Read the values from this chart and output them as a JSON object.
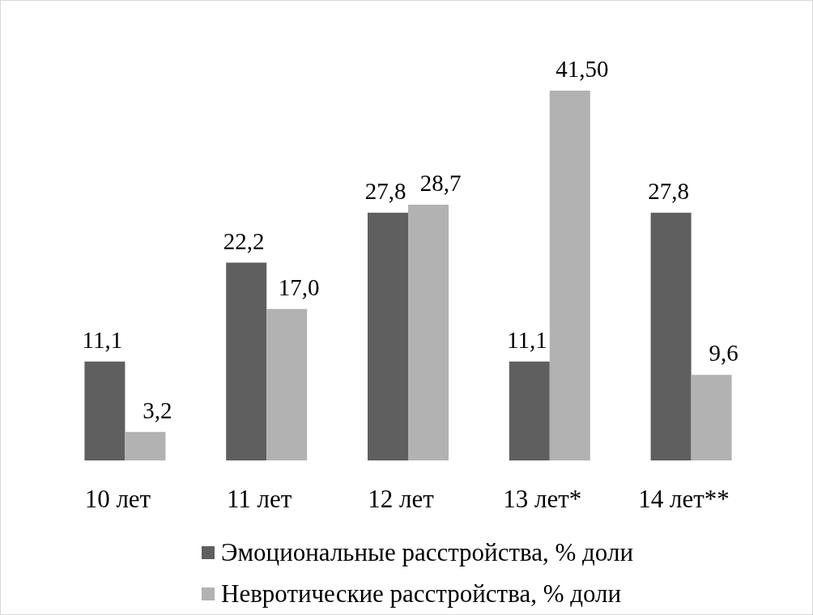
{
  "chart_data": {
    "type": "bar",
    "categories": [
      "10 лет",
      "11 лет",
      "12 лет",
      "13 лет*",
      "14 лет**"
    ],
    "series": [
      {
        "name": "Эмоциональные расстройства, % доли",
        "color": "#5f5f5f",
        "values": [
          11.1,
          22.2,
          27.8,
          11.1,
          27.8
        ],
        "value_labels": [
          "11,1",
          "22,2",
          "27,8",
          "11,1",
          "27,8"
        ]
      },
      {
        "name": "Невротические расстройства, % доли",
        "color": "#b2b2b2",
        "values": [
          3.2,
          17.0,
          28.7,
          41.5,
          9.6
        ],
        "value_labels": [
          "3,2",
          "17,0",
          "28,7",
          "41,50",
          "9,6"
        ]
      }
    ],
    "legend": "bottom"
  }
}
